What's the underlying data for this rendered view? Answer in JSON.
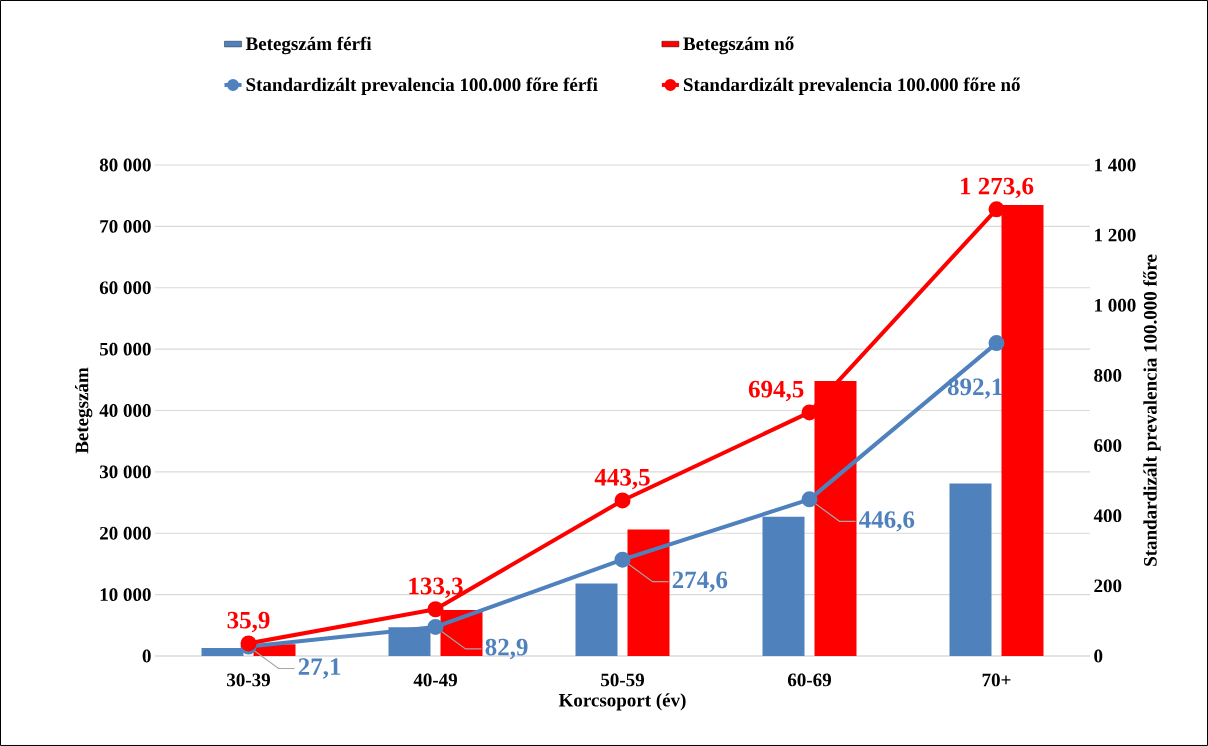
{
  "chart_data": {
    "type": "bar",
    "xlabel": "Korcsoport (év)",
    "ylabel": "Betegszám",
    "y2label": "Standardizált prevalencia 100.000  főre",
    "categories": [
      "30-39",
      "40-49",
      "50-59",
      "60-69",
      "70+"
    ],
    "series": [
      {
        "name": "Betegszám férfi",
        "color": "#4f81bd",
        "values": [
          1300,
          4700,
          11800,
          22700,
          28100
        ]
      },
      {
        "name": "Betegszám nő",
        "color": "#ff0000",
        "values": [
          1900,
          7500,
          20600,
          44800,
          73500
        ]
      },
      {
        "name": "Standardizált prevalencia 100.000 főre férfi",
        "type": "line",
        "axis": "y2",
        "color": "#4f81bd",
        "values": [
          27.1,
          82.9,
          274.6,
          446.6,
          892.1
        ],
        "value_labels": [
          "27,1",
          "82,9",
          "274,6",
          "446,6",
          "892,1"
        ]
      },
      {
        "name": "Standardizált prevalencia 100.000 főre nő",
        "type": "line",
        "axis": "y2",
        "color": "#ff0000",
        "values": [
          35.9,
          133.3,
          443.5,
          694.5,
          1273.6
        ],
        "value_labels": [
          "35,9",
          "133,3",
          "443,5",
          "694,5",
          "1 273,6"
        ]
      }
    ],
    "ylim": [
      0,
      80000
    ],
    "yticks": [
      0,
      {
        "value": 10000,
        "label": "10 000"
      },
      {
        "value": 20000,
        "label": "20 000"
      },
      {
        "value": 30000,
        "label": "30 000"
      },
      {
        "value": 40000,
        "label": "40 000"
      },
      {
        "value": 50000,
        "label": "50 000"
      },
      {
        "value": 60000,
        "label": "60 000"
      },
      {
        "value": 70000,
        "label": "70 000"
      },
      {
        "value": 80000,
        "label": "80 000"
      }
    ],
    "y2lim": [
      0,
      1400
    ],
    "y2ticks": [
      0,
      200,
      400,
      600,
      800,
      {
        "value": 1000,
        "label": "1 000"
      },
      {
        "value": 1200,
        "label": "1 200"
      },
      {
        "value": 1400,
        "label": "1 400"
      }
    ],
    "grid": "y",
    "legend": "top",
    "marker": "circle"
  }
}
